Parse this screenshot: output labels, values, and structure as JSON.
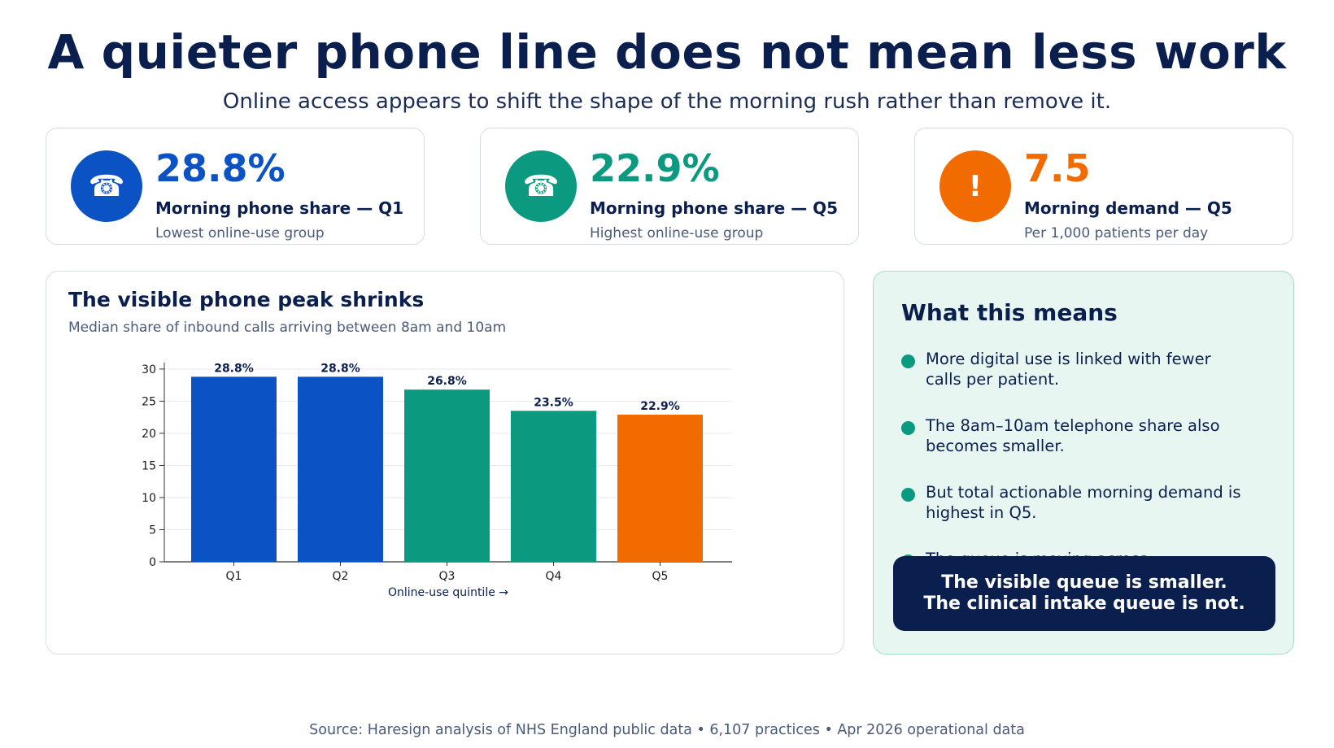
{
  "title": "A quieter phone line does not mean less work",
  "subtitle": "Online access appears to shift the shape of the morning rush rather than remove it.",
  "kpis": [
    {
      "value": "28.8%",
      "label": "Morning phone share — Q1",
      "note": "Lowest online-use group",
      "icon": "phone-icon",
      "color": "#0b52c5"
    },
    {
      "value": "22.9%",
      "label": "Morning phone share — Q5",
      "note": "Highest online-use group",
      "icon": "phone-icon",
      "color": "#0b9a7f"
    },
    {
      "value": "7.5",
      "label": "Morning demand — Q5",
      "note": "Per 1,000 patients per day",
      "icon": "exclamation-icon",
      "color": "#f26b00"
    }
  ],
  "chart_card": {
    "title": "The visible phone peak shrinks",
    "subtitle": "Median share of inbound calls arriving between 8am and 10am"
  },
  "chart_data": {
    "type": "bar",
    "categories": [
      "Q1",
      "Q2",
      "Q3",
      "Q4",
      "Q5"
    ],
    "values": [
      28.8,
      28.8,
      26.8,
      23.5,
      22.9
    ],
    "value_labels": [
      "28.8%",
      "28.8%",
      "26.8%",
      "23.5%",
      "22.9%"
    ],
    "colors": [
      "#0b52c5",
      "#0b52c5",
      "#0b9a7f",
      "#0b9a7f",
      "#f26b00"
    ],
    "xlabel": "Online-use quintile  →",
    "ylabel": "",
    "ylim": [
      0,
      30
    ],
    "yticks": [
      0,
      5,
      10,
      15,
      20,
      25,
      30
    ],
    "grid": true
  },
  "side_panel": {
    "title": "What this means",
    "bullets": [
      "More digital use is linked with fewer calls per patient.",
      "The 8am–10am telephone share also becomes smaller.",
      "But total actionable morning demand is highest in Q5.",
      "The queue is moving across"
    ],
    "callout_line1": "The visible queue is smaller.",
    "callout_line2": "The clinical intake queue is not."
  },
  "source": "Source: Haresign analysis of NHS England public data • 6,107 practices • Apr 2026 operational data"
}
